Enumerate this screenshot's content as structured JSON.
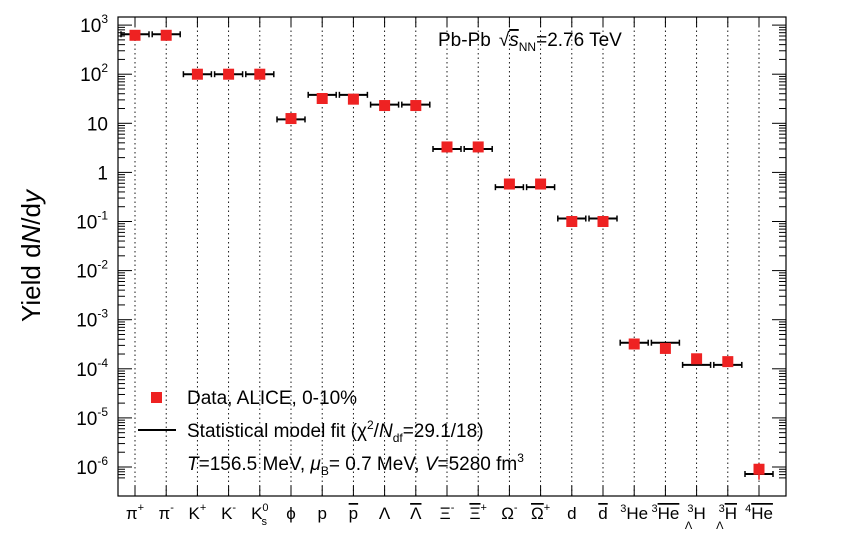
{
  "chart_data": {
    "type": "scatter",
    "yscale": "log",
    "ylim": [
      5e-07,
      1000
    ],
    "ylabel": "Yield dN/dy",
    "xlabel": "",
    "title": "Pb-Pb √sNN=2.76 TeV",
    "grid": "vertical dotted lines at each category",
    "legend_placement": "bottom-left",
    "colors": {
      "data": "#ee2222",
      "model": "#000000"
    },
    "y_ticks": [
      {
        "value": 1e-06,
        "base": "10",
        "exp": "-6"
      },
      {
        "value": 1e-05,
        "base": "10",
        "exp": "-5"
      },
      {
        "value": 0.0001,
        "base": "10",
        "exp": "-4"
      },
      {
        "value": 0.001,
        "base": "10",
        "exp": "-3"
      },
      {
        "value": 0.01,
        "base": "10",
        "exp": "-2"
      },
      {
        "value": 0.1,
        "base": "10",
        "exp": "-1"
      },
      {
        "value": 1,
        "base": "1",
        "exp": ""
      },
      {
        "value": 10,
        "base": "10",
        "exp": ""
      },
      {
        "value": 100,
        "base": "10",
        "exp": "2"
      },
      {
        "value": 1000,
        "base": "10",
        "exp": "3"
      }
    ],
    "categories": [
      {
        "base": "π",
        "sup": "+",
        "sub": "",
        "over": false
      },
      {
        "base": "π",
        "sup": "-",
        "sub": "",
        "over": false
      },
      {
        "base": "K",
        "sup": "+",
        "sub": "",
        "over": false
      },
      {
        "base": "K",
        "sup": "-",
        "sub": "",
        "over": false
      },
      {
        "base": "K",
        "sup": "0",
        "sub": "s",
        "over": false
      },
      {
        "base": "ϕ",
        "sup": "",
        "sub": "",
        "over": false
      },
      {
        "base": "p",
        "sup": "",
        "sub": "",
        "over": false
      },
      {
        "base": "p",
        "sup": "",
        "sub": "",
        "over": true
      },
      {
        "base": "Λ",
        "sup": "",
        "sub": "",
        "over": false
      },
      {
        "base": "Λ",
        "sup": "",
        "sub": "",
        "over": true
      },
      {
        "base": "Ξ",
        "sup": "-",
        "sub": "",
        "over": false
      },
      {
        "base": "Ξ",
        "sup": "+",
        "sub": "",
        "over": true
      },
      {
        "base": "Ω",
        "sup": "-",
        "sub": "",
        "over": false
      },
      {
        "base": "Ω",
        "sup": "+",
        "sub": "",
        "over": true
      },
      {
        "base": "d",
        "sup": "",
        "sub": "",
        "over": false
      },
      {
        "base": "d",
        "sup": "",
        "sub": "",
        "over": true
      },
      {
        "base": "He",
        "pre": "3",
        "sup": "",
        "sub": "",
        "over": false
      },
      {
        "base": "He",
        "pre": "3",
        "sup": "",
        "sub": "",
        "over": true
      },
      {
        "base": "H",
        "pre": "3",
        "presub": "Λ",
        "sup": "",
        "sub": "",
        "over": false
      },
      {
        "base": "H",
        "pre": "3",
        "presub": "Λ",
        "sup": "",
        "sub": "",
        "over": true
      },
      {
        "base": "He",
        "pre": "4",
        "sup": "",
        "sub": "",
        "over": true
      }
    ],
    "series": [
      {
        "name": "Data, ALICE, 0-10%",
        "marker": "square",
        "values": [
          620,
          620,
          100,
          100,
          100,
          12.5,
          32,
          31,
          23,
          23,
          3.3,
          3.3,
          0.58,
          0.58,
          0.1,
          0.1,
          0.00032,
          0.00026,
          0.00016,
          0.00014,
          9e-07
        ],
        "err_low": [
          0,
          0,
          0,
          0,
          0,
          0,
          0,
          0,
          0,
          0,
          0,
          0,
          0,
          0,
          0,
          0,
          4e-05,
          6e-05,
          3e-05,
          3e-05,
          3.5e-07
        ],
        "err_high": [
          0,
          0,
          0,
          0,
          0,
          0,
          0,
          0,
          0,
          0,
          0,
          0,
          0,
          0,
          0,
          0,
          4e-05,
          5e-05,
          2e-05,
          3e-05,
          3e-07
        ]
      },
      {
        "name": "Statistical model fit",
        "marker": "horizontal-line",
        "values": [
          650,
          650,
          100,
          100,
          100,
          12,
          38,
          38,
          24,
          24,
          3,
          3,
          0.5,
          0.5,
          0.115,
          0.115,
          0.00034,
          0.00034,
          0.00012,
          0.00012,
          7.2e-07
        ]
      }
    ],
    "legend": {
      "data_label": "Data, ALICE, 0-10%",
      "model_prefix": "Statistical model fit (χ",
      "model_sup": "2",
      "model_slash": "/",
      "model_N": "N",
      "model_sub": "df",
      "model_suffix": "=29.1/18)",
      "params_T": "T",
      "params_T_val": "=156.5 MeV, ",
      "params_mu": "μ",
      "params_mu_sub": "B",
      "params_mu_val": "= 0.7 MeV, ",
      "params_V": "V",
      "params_V_val": "=5280 fm",
      "params_V_sup": "3"
    },
    "title_parts": {
      "system": "Pb-Pb",
      "sqrt": "√",
      "s": "s",
      "sub": "NN",
      "energy": "=2.76 TeV"
    },
    "ylabel_parts": {
      "prefix": "Yield d",
      "N": "N",
      "mid": "/d",
      "y": "y"
    }
  }
}
